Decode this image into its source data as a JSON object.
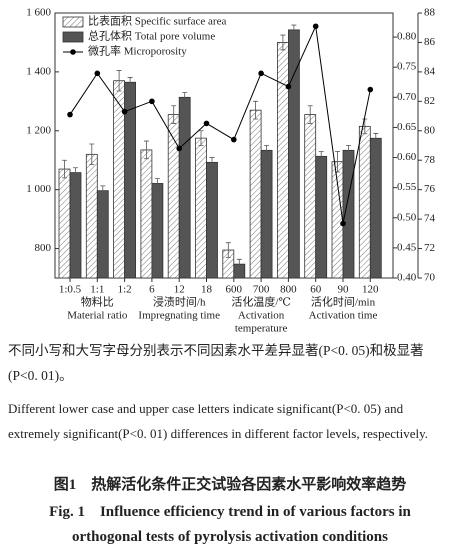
{
  "chart_data": {
    "type": "bar",
    "categories": [
      "1:0.5",
      "1:1",
      "1:2",
      "6",
      "12",
      "18",
      "600",
      "700",
      "800",
      "60",
      "90",
      "120"
    ],
    "groups": [
      {
        "label_zh": "物料比",
        "label_en": [
          "Material ratio"
        ]
      },
      {
        "label_zh": "浸渍时间/h",
        "label_en": [
          "Impregnating time"
        ]
      },
      {
        "label_zh": "活化温度/℃",
        "label_en": [
          "Activation",
          "temperature"
        ]
      },
      {
        "label_zh": "活化时间/min",
        "label_en": [
          "Activation time"
        ]
      }
    ],
    "series": [
      {
        "name": "比表面积  Specific surface area",
        "color": "#ffffff",
        "hatch": true,
        "axis": "y",
        "values": [
          1070,
          1120,
          1370,
          1135,
          1255,
          1175,
          795,
          1270,
          1500,
          1255,
          1095,
          1215
        ],
        "errors": [
          30,
          35,
          35,
          30,
          30,
          25,
          25,
          30,
          25,
          30,
          35,
          25
        ]
      },
      {
        "name": "总孔体积  Total pore volume",
        "color": "#555555",
        "axis": "y2",
        "values": [
          0.575,
          0.545,
          0.725,
          0.557,
          0.7,
          0.592,
          0.423,
          0.612,
          0.812,
          0.602,
          0.612,
          0.632
        ],
        "errors": [
          0.008,
          0.008,
          0.008,
          0.008,
          0.008,
          0.008,
          0.008,
          0.008,
          0.008,
          0.008,
          0.008,
          0.008
        ]
      },
      {
        "name": "微孔率  Microporosity",
        "color": "#000000",
        "type": "line",
        "axis": "y3",
        "values": [
          81.1,
          83.9,
          81.3,
          82.0,
          78.8,
          80.5,
          79.4,
          83.9,
          83.0,
          87.1,
          73.7,
          82.8
        ]
      }
    ],
    "ylim": [
      700,
      1600
    ],
    "yticks": [
      800,
      {
        "value": 1000,
        "label": "1 000"
      },
      {
        "value": 1200,
        "label": "1 200"
      },
      {
        "value": 1400,
        "label": "1 400"
      },
      {
        "value": 1600,
        "label": "1 600"
      }
    ],
    "y2lim": [
      0.4,
      0.84
    ],
    "y2ticks": [
      {
        "value": 0.4,
        "label": "0.40"
      },
      0.45,
      {
        "value": 0.5,
        "label": "0.50"
      },
      0.55,
      {
        "value": 0.6,
        "label": "0.60"
      },
      0.65,
      {
        "value": 0.7,
        "label": "0.70"
      },
      0.75,
      {
        "value": 0.8,
        "label": "0.80"
      }
    ],
    "y3lim": [
      70,
      88
    ],
    "y3ticks": [
      70,
      72,
      74,
      76,
      78,
      80,
      82,
      84,
      86,
      88
    ],
    "legend": "upper left",
    "grid": false
  },
  "notes": {
    "zh": "不同小写和大写字母分别表示不同因素水平差异显著(P<0. 05)和极显著(P<0. 01)。",
    "en": "Different lower case and upper case letters indicate significant(P<0. 05) and extremely significant(P<0. 01) differences in different factor levels, respectively."
  },
  "caption": {
    "zh": "图1　热解活化条件正交试验各因素水平影响效率趋势",
    "en": "Fig. 1　Influence efficiency trend in of various factors in orthogonal tests of pyrolysis activation conditions"
  }
}
